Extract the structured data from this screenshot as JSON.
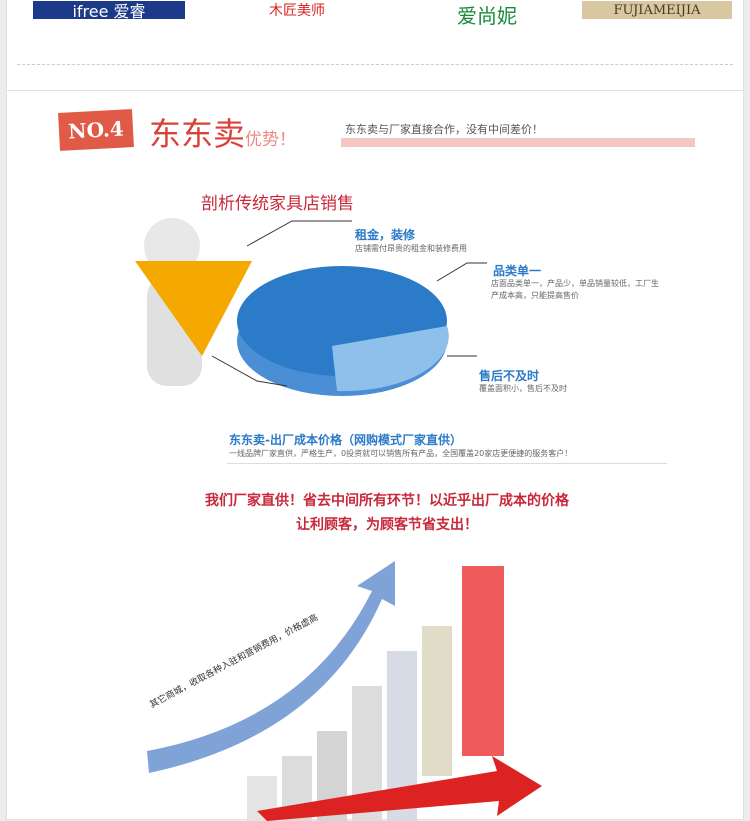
{
  "brands": [
    "ifree 爱睿",
    "木匠美师",
    "爱尚妮",
    "FUJIAMEIJIA"
  ],
  "section": {
    "badge": "NO.4",
    "brand": "东东卖",
    "brand_suffix": "优势！",
    "slogan": "东东卖与厂家直接合作，没有中间差价！"
  },
  "analysis": {
    "title": "剖析传统家具店销售",
    "items": [
      {
        "title": "租金，装修",
        "desc": "店铺需付昂贵的租金和装修费用"
      },
      {
        "title": "品类单一",
        "desc": "店面品类单一，产品少，单品销量较低，工厂生产成本高，只能提高售价"
      },
      {
        "title": "售后不及时",
        "desc": "覆盖面积小，售后不及时"
      },
      {
        "title": "东东卖-出厂成本价格（网购模式厂家直供）",
        "desc": "一线品牌厂家直供，严格生产，0投资就可以销售所有产品，全国覆盖20家店更便捷的服务客户！"
      }
    ]
  },
  "headline": {
    "line1": "我们厂家直供！省去中间所有环节！以近乎出厂成本的价格",
    "line2": "让利顾客，为顾客节省支出！"
  },
  "arrow_label": "其它商城，收取各种入驻和营销费用，价格虚高",
  "colors": {
    "accent": "#d9413a",
    "blue": "#2b7bc8",
    "orange": "#f5a800"
  }
}
